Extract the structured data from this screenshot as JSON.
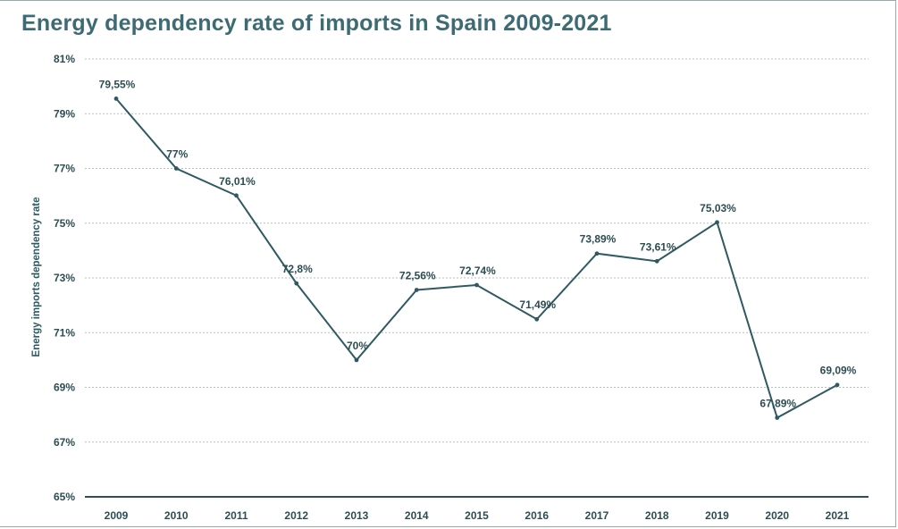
{
  "chart_data": {
    "type": "line",
    "title": "Energy dependency rate of imports in Spain 2009-2021",
    "xlabel": "",
    "ylabel": "Energy imports dependency rate",
    "categories": [
      "2009",
      "2010",
      "2011",
      "2012",
      "2013",
      "2014",
      "2015",
      "2016",
      "2017",
      "2018",
      "2019",
      "2020",
      "2021"
    ],
    "values": [
      79.55,
      77,
      76.01,
      72.8,
      70,
      72.56,
      72.74,
      71.49,
      73.89,
      73.61,
      75.03,
      67.89,
      69.09
    ],
    "data_labels": [
      "79,55%",
      "77%",
      "76,01%",
      "72,8%",
      "70%",
      "72,56%",
      "72,74%",
      "71,49%",
      "73,89%",
      "73,61%",
      "75,03%",
      "67,89%",
      "69,09%"
    ],
    "y_ticks": [
      65,
      67,
      69,
      71,
      73,
      75,
      77,
      79,
      81
    ],
    "y_tick_labels": [
      "65%",
      "67%",
      "69%",
      "71%",
      "73%",
      "75%",
      "77%",
      "79%",
      "81%"
    ],
    "ylim": [
      65,
      81
    ],
    "grid": true,
    "line_color": "#2f5a62",
    "title_color": "#3d6b73"
  }
}
